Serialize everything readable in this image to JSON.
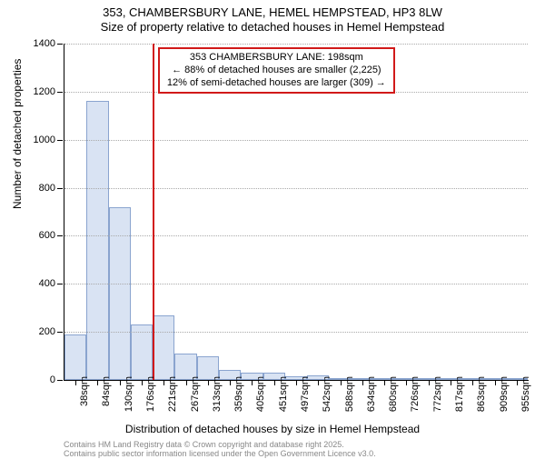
{
  "title": {
    "main": "353, CHAMBERSBURY LANE, HEMEL HEMPSTEAD, HP3 8LW",
    "sub": "Size of property relative to detached houses in Hemel Hempstead",
    "fontsize": 13
  },
  "ylabel": "Number of detached properties",
  "xlabel": "Distribution of detached houses by size in Hemel Hempstead",
  "label_fontsize": 12,
  "tick_fontsize": 11,
  "yaxis": {
    "min": 0,
    "max": 1400,
    "step": 200
  },
  "bars": {
    "categories": [
      "38sqm",
      "84sqm",
      "130sqm",
      "176sqm",
      "221sqm",
      "267sqm",
      "313sqm",
      "359sqm",
      "405sqm",
      "451sqm",
      "497sqm",
      "542sqm",
      "588sqm",
      "634sqm",
      "680sqm",
      "726sqm",
      "772sqm",
      "817sqm",
      "863sqm",
      "909sqm",
      "955sqm"
    ],
    "values": [
      190,
      1160,
      720,
      230,
      270,
      110,
      100,
      40,
      30,
      30,
      15,
      20,
      8,
      5,
      5,
      3,
      3,
      2,
      2,
      2,
      1
    ],
    "fill": "#d9e3f3",
    "stroke": "#8aa4cf",
    "width_ratio": 1.0
  },
  "marker": {
    "value_sqm": 198,
    "color": "#d11919"
  },
  "callout": {
    "border_color": "#d11919",
    "lines": [
      "353 CHAMBERSBURY LANE: 198sqm",
      "← 88% of detached houses are smaller (2,225)",
      "12% of semi-detached houses are larger (309) →"
    ]
  },
  "colors": {
    "background": "#ffffff",
    "axis": "#000000",
    "grid": "#aaaaaa",
    "text": "#000000",
    "attrib": "#888888"
  },
  "attrib": [
    "Contains HM Land Registry data © Crown copyright and database right 2025.",
    "Contains public sector information licensed under the Open Government Licence v3.0."
  ]
}
